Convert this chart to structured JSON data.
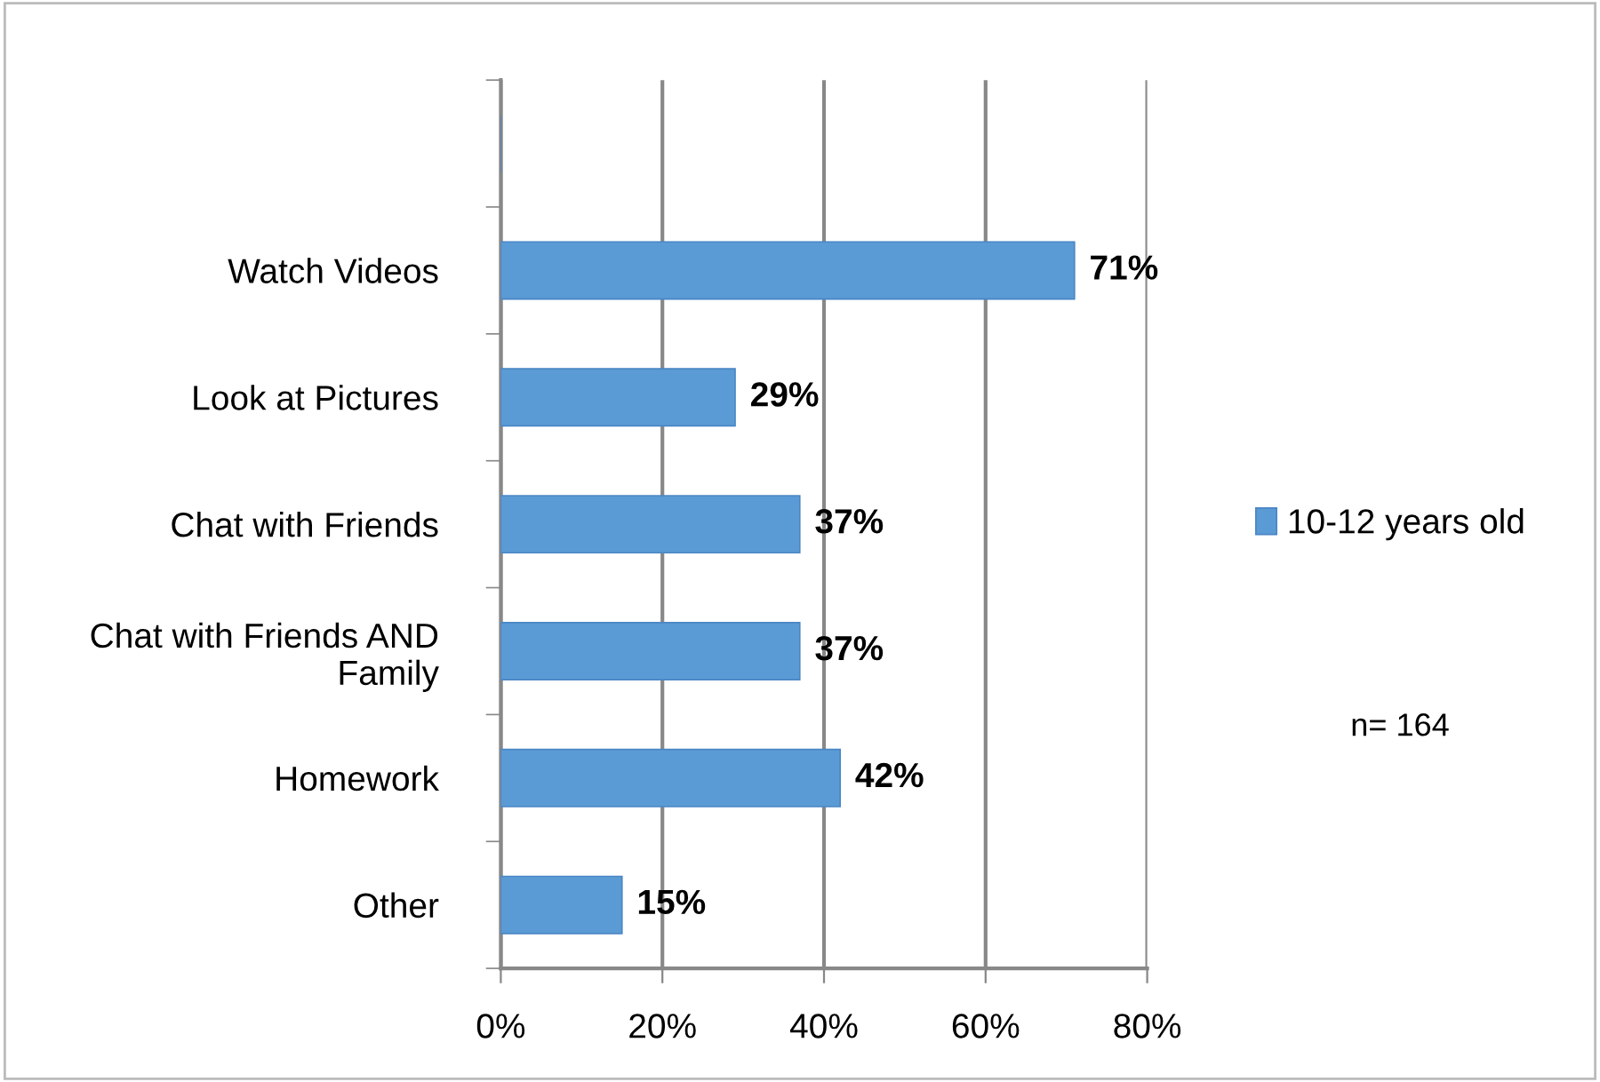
{
  "chart_data": {
    "type": "bar",
    "orientation": "horizontal",
    "categories": [
      null,
      "Watch Videos",
      "Look at Pictures",
      "Chat with Friends",
      "Chat with Friends AND\nFamily",
      "Homework",
      "Other"
    ],
    "series": [
      {
        "name": "10-12 years old",
        "color": "#5b9bd5",
        "values": [
          null,
          71,
          29,
          37,
          37,
          42,
          15
        ],
        "value_labels": [
          null,
          "71%",
          "29%",
          "37%",
          "37%",
          "42%",
          "15%"
        ]
      }
    ],
    "xlim": [
      0,
      80
    ],
    "xticks": [
      {
        "value": 0,
        "label": "0%"
      },
      {
        "value": 20,
        "label": "20%"
      },
      {
        "value": 40,
        "label": "40%"
      },
      {
        "value": 60,
        "label": "60%"
      },
      {
        "value": 80,
        "label": "80%"
      }
    ],
    "grid": "x",
    "legend": "right",
    "annotations": [
      "n= 164"
    ]
  }
}
